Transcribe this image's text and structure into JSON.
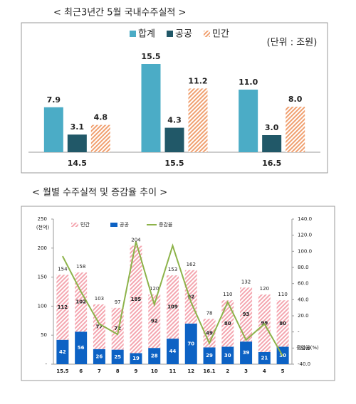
{
  "chart_data": [
    {
      "type": "bar",
      "title": "< 최근3년간 5월 국내수주실적 >",
      "unit": "(단위 : 조원)",
      "categories": [
        "14.5",
        "15.5",
        "16.5"
      ],
      "series": [
        {
          "name": "합계",
          "color": "#4bacc6",
          "hatch": false,
          "values": [
            7.9,
            15.5,
            11.0
          ],
          "value_labels": [
            "7.9",
            "15.5",
            "11.0"
          ]
        },
        {
          "name": "공공",
          "color": "#215868",
          "hatch": false,
          "values": [
            3.1,
            4.3,
            3.0
          ],
          "value_labels": [
            "3.1",
            "4.3",
            "3.0"
          ]
        },
        {
          "name": "민간",
          "color": "#f0a070",
          "hatch": true,
          "values": [
            4.8,
            11.2,
            8.0
          ],
          "value_labels": [
            "4.8",
            "11.2",
            "8.0"
          ]
        }
      ]
    },
    {
      "type": "stacked-bar-line",
      "title": "< 월별 수주실적 및 증감율 추이 >",
      "ylabel": "(천억)",
      "y2label": "증감율(%)",
      "categories": [
        "15.5",
        "6",
        "7",
        "8",
        "9",
        "10",
        "11",
        "12",
        "16.1",
        "2",
        "3",
        "4",
        "5"
      ],
      "ylim": [
        0,
        250
      ],
      "yticks": [
        {
          "value": 0,
          "label": "-"
        },
        50,
        100,
        150,
        200,
        250
      ],
      "y2lim": [
        -40,
        140
      ],
      "y2ticks": [
        {
          "value": -40,
          "label": "-40.0"
        },
        {
          "value": -20,
          "label": "-20.0"
        },
        {
          "value": 0,
          "label": "-"
        },
        {
          "value": 20,
          "label": "20.0"
        },
        {
          "value": 40,
          "label": "40.0"
        },
        {
          "value": 60,
          "label": "60.0"
        },
        {
          "value": 80,
          "label": "80.0"
        },
        {
          "value": 100,
          "label": "100.0"
        },
        {
          "value": 120,
          "label": "120.0"
        },
        {
          "value": 140,
          "label": "140.0"
        }
      ],
      "totals": [
        154,
        158,
        103,
        97,
        204,
        120,
        153,
        162,
        78,
        110,
        132,
        120,
        110
      ],
      "series": [
        {
          "name": "민간",
          "color": "#f4a6b0",
          "hatch": true,
          "values": [
            112,
            102,
            77,
            72,
            185,
            92,
            109,
            92,
            49,
            80,
            93,
            99,
            80
          ]
        },
        {
          "name": "공공",
          "color": "#0d62c4",
          "hatch": false,
          "values": [
            42,
            56,
            26,
            25,
            19,
            28,
            44,
            70,
            29,
            30,
            39,
            21,
            30
          ]
        },
        {
          "name": "증감율",
          "color": "#8db34a",
          "axis": "y2",
          "kind": "line",
          "values": [
            94,
            50,
            10,
            -3,
            112,
            34,
            107,
            37,
            -14,
            37,
            -10,
            10,
            -30
          ]
        }
      ]
    }
  ]
}
